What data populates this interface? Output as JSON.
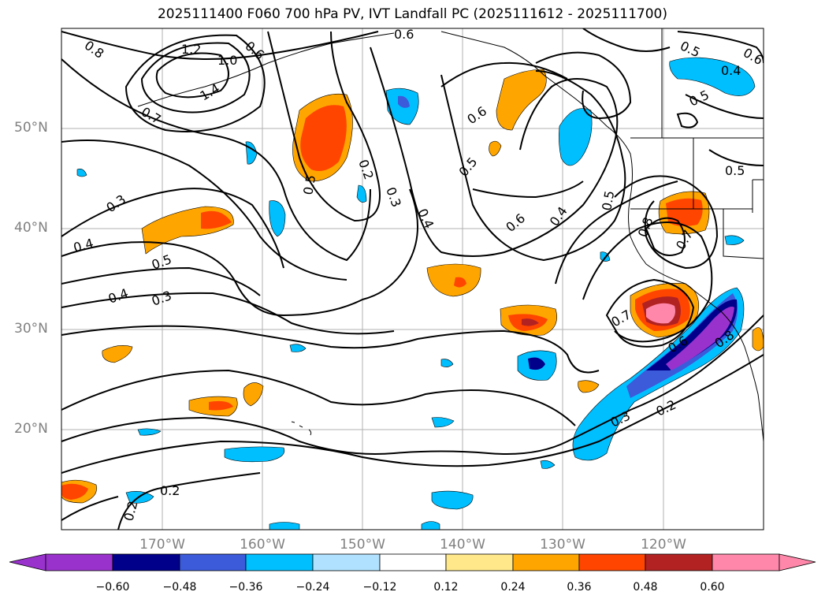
{
  "title": "2025111400 F060 700 hPa PV, IVT Landfall PC (2025111612 - 2025111700)",
  "map": {
    "lat_labels": [
      "50°N",
      "40°N",
      "30°N",
      "20°N"
    ],
    "lon_labels": [
      "170°W",
      "160°W",
      "150°W",
      "140°W",
      "130°W",
      "120°W"
    ],
    "contour_labels": [
      "0.8",
      "1.2",
      "1.0",
      "0.6",
      "1.4",
      "0.7",
      "0.6",
      "0.6",
      "0.5",
      "0.4",
      "0.5",
      "0.5",
      "0.5",
      "0.2",
      "0.3",
      "0.4",
      "0.6",
      "0.5",
      "0.3",
      "0.4",
      "0.5",
      "0.4",
      "0.3",
      "0.6",
      "0.4",
      "0.5",
      "0.8",
      "0.7",
      "0.7",
      "0.6",
      "0.8",
      "0.3",
      "0.2",
      "0.2",
      "0.2"
    ],
    "fill_colors": {
      "pos_strong": "#ff88aa",
      "pos_darkred": "#b22222",
      "pos_red": "#ff4500",
      "pos_orange": "#ffa500",
      "neg_blue": "#00bfff",
      "neg_mid": "#3b5bdb",
      "neg_navy": "#00008b",
      "neg_purple": "#9932cc"
    }
  },
  "colorbar": {
    "ticks": [
      "−0.60",
      "−0.48",
      "−0.36",
      "−0.24",
      "−0.12",
      "0.12",
      "0.24",
      "0.36",
      "0.48",
      "0.60"
    ],
    "colors": [
      "#9932cc",
      "#00008b",
      "#3b5bdb",
      "#00bfff",
      "#b0e2ff",
      "#ffffff",
      "#ffe88a",
      "#ffa500",
      "#ff4500",
      "#b22222",
      "#ff88aa"
    ]
  }
}
